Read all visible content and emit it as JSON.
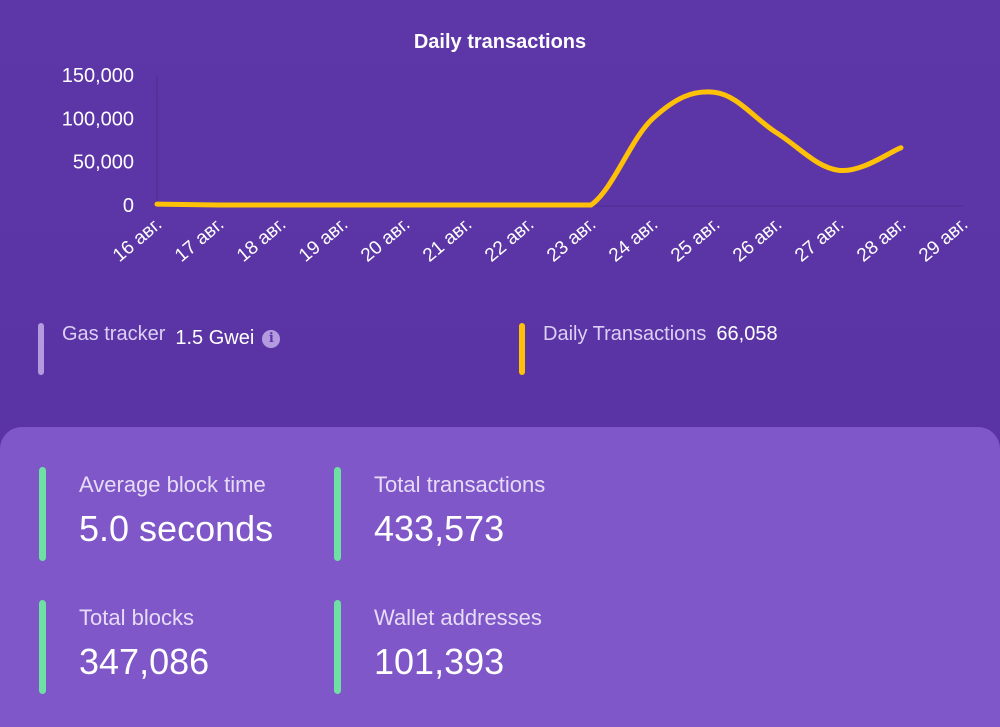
{
  "chart_data": {
    "type": "line",
    "title": "Daily transactions",
    "categories": [
      "16 авг.",
      "17 авг.",
      "18 авг.",
      "19 авг.",
      "20 авг.",
      "21 авг.",
      "22 авг.",
      "23 авг.",
      "24 авг.",
      "25 авг.",
      "26 авг.",
      "27 авг.",
      "28 авг.",
      "29 авг."
    ],
    "values": [
      1000,
      0,
      0,
      0,
      0,
      0,
      0,
      0,
      100000,
      130000,
      83000,
      40000,
      66058,
      null
    ],
    "yticks": [
      "0",
      "50,000",
      "100,000",
      "150,000"
    ],
    "ylim": [
      0,
      150000
    ],
    "xlabel": "",
    "ylabel": "",
    "line_color": "#ffc107",
    "grid": false
  },
  "gas": {
    "label": "Gas tracker",
    "value": "1.5 Gwei",
    "color": "#b49be0"
  },
  "daily": {
    "label": "Daily Transactions",
    "value": "66,058",
    "color": "#ffc107"
  },
  "stats": [
    {
      "label": "Average block time",
      "value": "5.0 seconds"
    },
    {
      "label": "Total transactions",
      "value": "433,573"
    },
    {
      "label": "Total blocks",
      "value": "347,086"
    },
    {
      "label": "Wallet addresses",
      "value": "101,393"
    }
  ]
}
